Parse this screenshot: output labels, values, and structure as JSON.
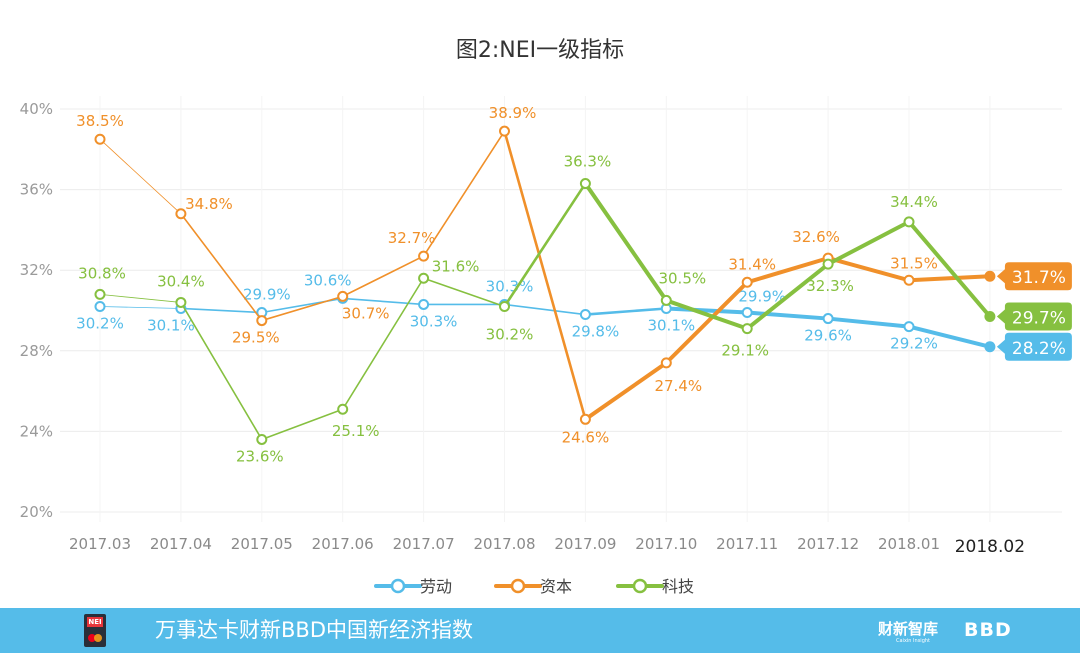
{
  "chart_data": {
    "type": "line",
    "title": "图2:NEI一级指标",
    "categories": [
      "2017.03",
      "2017.04",
      "2017.05",
      "2017.06",
      "2017.07",
      "2017.08",
      "2017.09",
      "2017.10",
      "2017.11",
      "2017.12",
      "2018.01",
      "2018.02"
    ],
    "y_ticks": [
      "40%",
      "36%",
      "32%",
      "28%",
      "24%",
      "20%"
    ],
    "ylim": [
      20,
      40
    ],
    "series": [
      {
        "name": "劳动",
        "color": "#55bce9",
        "values": [
          30.2,
          30.1,
          29.9,
          30.6,
          30.3,
          30.3,
          29.8,
          30.1,
          29.9,
          29.6,
          29.2,
          28.2
        ],
        "labels": [
          "30.2%",
          "30.1%",
          "29.9%",
          "30.6%",
          "30.3%",
          "30.3%",
          "29.8%",
          "30.1%",
          "29.9%",
          "29.6%",
          "29.2%",
          "28.2%"
        ]
      },
      {
        "name": "资本",
        "color": "#f0902a",
        "values": [
          38.5,
          34.8,
          29.5,
          30.7,
          32.7,
          38.9,
          24.6,
          27.4,
          31.4,
          32.6,
          31.5,
          31.7
        ],
        "labels": [
          "38.5%",
          "34.8%",
          "29.5%",
          "30.7%",
          "32.7%",
          "38.9%",
          "24.6%",
          "27.4%",
          "31.4%",
          "32.6%",
          "31.5%",
          "31.7%"
        ]
      },
      {
        "name": "科技",
        "color": "#86c040",
        "values": [
          30.8,
          30.4,
          23.6,
          25.1,
          31.6,
          30.2,
          36.3,
          30.5,
          29.1,
          32.3,
          34.4,
          29.7
        ],
        "labels": [
          "30.8%",
          "30.4%",
          "23.6%",
          "25.1%",
          "31.6%",
          "30.2%",
          "36.3%",
          "30.5%",
          "29.1%",
          "32.3%",
          "34.4%",
          "29.7%"
        ]
      }
    ],
    "legend": [
      "劳动",
      "资本",
      "科技"
    ]
  },
  "footer": {
    "logo_text": "NEI",
    "title": "万事达卡财新BBD中国新经济指数",
    "brand1": "财新智库",
    "brand1_sub": "Caixin Insight",
    "brand2": "BBD"
  }
}
